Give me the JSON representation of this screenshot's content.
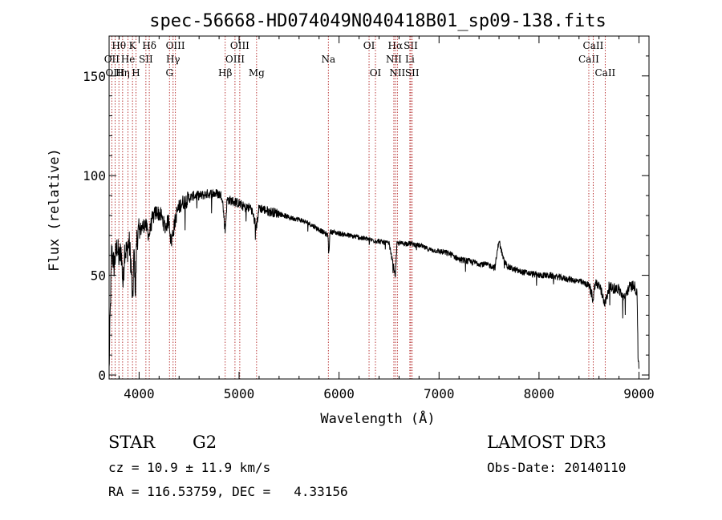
{
  "chart_data": {
    "type": "line",
    "title": "spec-56668-HD074049N040418B01_sp09-138.fits",
    "xlabel": "Wavelength (Å)",
    "ylabel": "Flux (relative)",
    "xlim": [
      3700,
      9100
    ],
    "ylim": [
      -2,
      170
    ],
    "xticks": [
      4000,
      5000,
      6000,
      7000,
      8000,
      9000
    ],
    "yticks": [
      0,
      50,
      100,
      150
    ],
    "x_minor_step": 200,
    "y_minor_step": 10,
    "grid": false,
    "spectrum_anchors": [
      [
        3700,
        2
      ],
      [
        3710,
        28
      ],
      [
        3725,
        62
      ],
      [
        3750,
        55
      ],
      [
        3780,
        65
      ],
      [
        3800,
        58
      ],
      [
        3820,
        63
      ],
      [
        3840,
        45
      ],
      [
        3855,
        63
      ],
      [
        3880,
        62
      ],
      [
        3900,
        67
      ],
      [
        3920,
        55
      ],
      [
        3935,
        35
      ],
      [
        3950,
        62
      ],
      [
        3965,
        40
      ],
      [
        3975,
        68
      ],
      [
        4000,
        72
      ],
      [
        4030,
        74
      ],
      [
        4060,
        76
      ],
      [
        4100,
        70
      ],
      [
        4130,
        78
      ],
      [
        4170,
        82
      ],
      [
        4220,
        80
      ],
      [
        4260,
        74
      ],
      [
        4300,
        78
      ],
      [
        4320,
        66
      ],
      [
        4340,
        72
      ],
      [
        4380,
        82
      ],
      [
        4420,
        86
      ],
      [
        4480,
        88
      ],
      [
        4550,
        90
      ],
      [
        4620,
        90
      ],
      [
        4700,
        91
      ],
      [
        4780,
        91
      ],
      [
        4830,
        90
      ],
      [
        4861,
        72
      ],
      [
        4880,
        88
      ],
      [
        4950,
        87
      ],
      [
        5000,
        86
      ],
      [
        5060,
        84
      ],
      [
        5120,
        84
      ],
      [
        5172,
        74
      ],
      [
        5200,
        84
      ],
      [
        5300,
        82
      ],
      [
        5400,
        81
      ],
      [
        5500,
        79
      ],
      [
        5600,
        78
      ],
      [
        5700,
        76
      ],
      [
        5800,
        73
      ],
      [
        5890,
        70
      ],
      [
        5896,
        60
      ],
      [
        5910,
        72
      ],
      [
        6000,
        71
      ],
      [
        6100,
        70
      ],
      [
        6200,
        69
      ],
      [
        6300,
        68
      ],
      [
        6400,
        67
      ],
      [
        6500,
        66
      ],
      [
        6563,
        50
      ],
      [
        6580,
        66
      ],
      [
        6700,
        66
      ],
      [
        6800,
        65
      ],
      [
        6900,
        63
      ],
      [
        7000,
        62
      ],
      [
        7100,
        61
      ],
      [
        7200,
        58
      ],
      [
        7300,
        57
      ],
      [
        7400,
        56
      ],
      [
        7500,
        55
      ],
      [
        7560,
        54
      ],
      [
        7600,
        68
      ],
      [
        7610,
        65
      ],
      [
        7650,
        57
      ],
      [
        7700,
        54
      ],
      [
        7800,
        52
      ],
      [
        7900,
        51
      ],
      [
        8000,
        50
      ],
      [
        8100,
        50
      ],
      [
        8200,
        49
      ],
      [
        8300,
        48
      ],
      [
        8400,
        47
      ],
      [
        8500,
        45
      ],
      [
        8542,
        38
      ],
      [
        8560,
        46
      ],
      [
        8600,
        45
      ],
      [
        8662,
        36
      ],
      [
        8700,
        44
      ],
      [
        8800,
        43
      ],
      [
        8850,
        38
      ],
      [
        8900,
        44
      ],
      [
        8950,
        45
      ],
      [
        8980,
        42
      ],
      [
        8990,
        10
      ],
      [
        9000,
        4
      ]
    ],
    "line_markers": [
      {
        "label": "Hθ",
        "x": 3798,
        "row": 0
      },
      {
        "label": "OII",
        "x": 3727,
        "row": 1
      },
      {
        "label": "OIII",
        "x": 3760,
        "row": 2
      },
      {
        "label": "Hη",
        "x": 3835,
        "row": 2
      },
      {
        "label": "He",
        "x": 3889,
        "row": 1
      },
      {
        "label": "K",
        "x": 3934,
        "row": 0
      },
      {
        "label": "H",
        "x": 3969,
        "row": 2
      },
      {
        "label": "SII",
        "x": 4068,
        "row": 1
      },
      {
        "label": "Hδ",
        "x": 4102,
        "row": 0
      },
      {
        "label": "OIII",
        "x": 4363,
        "row": 0
      },
      {
        "label": "Hγ",
        "x": 4340,
        "row": 1
      },
      {
        "label": "G",
        "x": 4304,
        "row": 2
      },
      {
        "label": "Hβ",
        "x": 4861,
        "row": 2
      },
      {
        "label": "OIII",
        "x": 5007,
        "row": 0
      },
      {
        "label": "OIII",
        "x": 4959,
        "row": 1
      },
      {
        "label": "Mg",
        "x": 5175,
        "row": 2
      },
      {
        "label": "Na",
        "x": 5893,
        "row": 1
      },
      {
        "label": "OI",
        "x": 6300,
        "row": 0
      },
      {
        "label": "OI",
        "x": 6364,
        "row": 2
      },
      {
        "label": "Hα",
        "x": 6563,
        "row": 0
      },
      {
        "label": "NII",
        "x": 6548,
        "row": 1
      },
      {
        "label": "NII",
        "x": 6583,
        "row": 2
      },
      {
        "label": "SII",
        "x": 6717,
        "row": 0
      },
      {
        "label": "Li",
        "x": 6708,
        "row": 1
      },
      {
        "label": "SII",
        "x": 6731,
        "row": 2
      },
      {
        "label": "CaII",
        "x": 8498,
        "row": 1
      },
      {
        "label": "CaII",
        "x": 8542,
        "row": 0
      },
      {
        "label": "CaII",
        "x": 8662,
        "row": 2
      }
    ]
  },
  "info": {
    "object_class": "STAR",
    "subclass": "G2",
    "survey": "LAMOST DR3",
    "cz_line": "cz = 10.9 ± 11.9 km/s",
    "obs_date": "Obs-Date: 20140110",
    "coords_line": "RA = 116.53759, DEC =   4.33156"
  },
  "colors": {
    "spectrum": "#000000",
    "marker_line": "#b22222",
    "axes": "#000000",
    "background": "#ffffff"
  }
}
